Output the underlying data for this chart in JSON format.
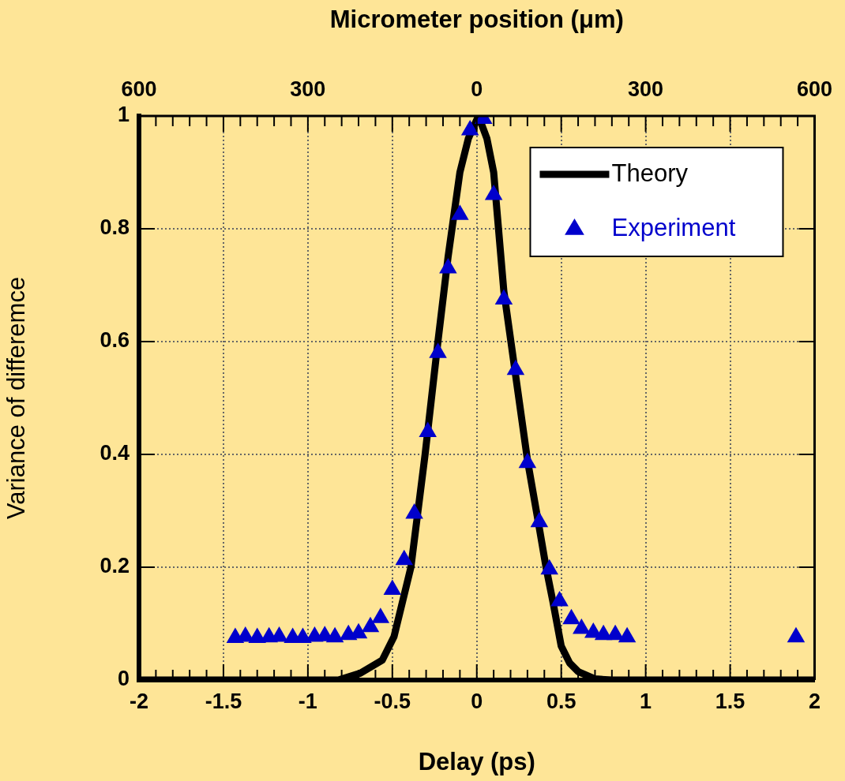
{
  "chart_data": {
    "type": "line",
    "xlabel": "Delay (ps)",
    "ylabel": "Variance of differemce",
    "x2label": "Micrometer position (μm)",
    "xlim": [
      -2,
      2
    ],
    "xticks": [
      -2,
      {
        "value": -1.9,
        "label": null
      },
      {
        "value": -1.8,
        "label": null
      },
      {
        "value": -1.7,
        "label": null
      },
      {
        "value": -1.6,
        "label": null
      },
      -1.5,
      {
        "value": -1.4,
        "label": null
      },
      {
        "value": -1.3,
        "label": null
      },
      {
        "value": -1.2,
        "label": null
      },
      {
        "value": -1.1,
        "label": null
      },
      -1,
      {
        "value": -0.9,
        "label": null
      },
      {
        "value": -0.8,
        "label": null
      },
      {
        "value": -0.7,
        "label": null
      },
      {
        "value": -0.6,
        "label": null
      },
      -0.5,
      {
        "value": -0.4,
        "label": null
      },
      {
        "value": -0.3,
        "label": null
      },
      {
        "value": -0.2,
        "label": null
      },
      {
        "value": -0.1,
        "label": null
      },
      0,
      {
        "value": 0.1,
        "label": null
      },
      {
        "value": 0.2,
        "label": null
      },
      {
        "value": 0.3,
        "label": null
      },
      {
        "value": 0.4,
        "label": null
      },
      0.5,
      {
        "value": 0.6,
        "label": null
      },
      {
        "value": 0.7,
        "label": null
      },
      {
        "value": 0.8,
        "label": null
      },
      {
        "value": 0.9,
        "label": null
      },
      1,
      {
        "value": 1.1,
        "label": null
      },
      {
        "value": 1.2,
        "label": null
      },
      {
        "value": 1.3,
        "label": null
      },
      {
        "value": 1.4,
        "label": null
      },
      1.5,
      {
        "value": 1.6,
        "label": null
      },
      {
        "value": 1.7,
        "label": null
      },
      {
        "value": 1.8,
        "label": null
      },
      {
        "value": 1.9,
        "label": null
      },
      2
    ],
    "x2lim": [
      -600,
      600
    ],
    "x2ticks": [
      {
        "value": -600,
        "label": "600"
      },
      {
        "value": -300,
        "label": "300"
      },
      0,
      300,
      600
    ],
    "ylim": [
      0,
      1
    ],
    "yticks": [
      0,
      0.2,
      0.4,
      0.6,
      0.8,
      1
    ],
    "grid": true,
    "legend": "top right",
    "series": [
      {
        "name": "Theory",
        "color": "#000000",
        "marker": "none",
        "line_style": "solid",
        "x": [
          -2,
          -0.82,
          -0.69,
          -0.56,
          -0.49,
          -0.39,
          -0.306,
          -0.23,
          -0.17,
          -0.1,
          -0.05,
          0.01,
          0.06,
          0.1,
          0.16,
          0.3,
          0.37,
          0.41,
          0.45,
          0.5,
          0.55,
          0.6,
          0.7,
          0.8,
          2
        ],
        "values": [
          0,
          0,
          0.012,
          0.035,
          0.077,
          0.2,
          0.4,
          0.6,
          0.75,
          0.9,
          0.96,
          1,
          0.96,
          0.9,
          0.69,
          0.39,
          0.27,
          0.2,
          0.14,
          0.06,
          0.03,
          0.015,
          0.002,
          0,
          0
        ]
      },
      {
        "name": "Experiment",
        "type": "scatter",
        "color": "#0000cc",
        "marker": "triangle",
        "x": [
          -1.43,
          -1.37,
          -1.3,
          -1.23,
          -1.17,
          -1.09,
          -1.03,
          -0.96,
          -0.9,
          -0.84,
          -0.76,
          -0.7,
          -0.63,
          -0.57,
          -0.5,
          -0.43,
          -0.37,
          -0.29,
          -0.23,
          -0.17,
          -0.1,
          -0.04,
          0.04,
          0.1,
          0.16,
          0.23,
          0.3,
          0.37,
          0.43,
          0.49,
          0.56,
          0.62,
          0.69,
          0.75,
          0.82,
          0.89,
          1.89
        ],
        "values": [
          0.075,
          0.077,
          0.075,
          0.076,
          0.077,
          0.075,
          0.075,
          0.077,
          0.078,
          0.076,
          0.08,
          0.083,
          0.094,
          0.11,
          0.16,
          0.213,
          0.295,
          0.44,
          0.58,
          0.73,
          0.825,
          0.975,
          0.995,
          0.86,
          0.675,
          0.55,
          0.385,
          0.28,
          0.196,
          0.14,
          0.108,
          0.091,
          0.084,
          0.08,
          0.08,
          0.076,
          0.076
        ]
      }
    ]
  }
}
